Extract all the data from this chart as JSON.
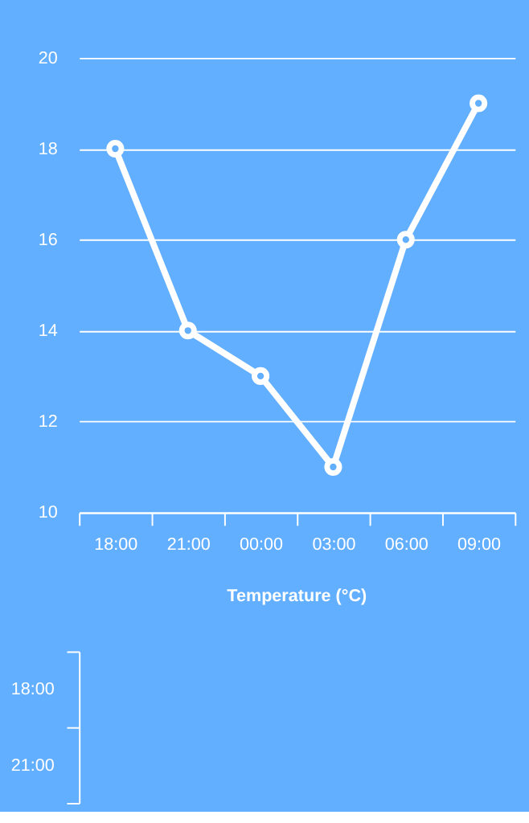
{
  "chart_data": [
    {
      "type": "line",
      "categories": [
        "18:00",
        "21:00",
        "00:00",
        "03:00",
        "06:00",
        "09:00"
      ],
      "series": [
        {
          "color": "#ffffff",
          "values": [
            18,
            14,
            13,
            11,
            16,
            19
          ]
        }
      ],
      "ylim": [
        10,
        20
      ],
      "yticks": [
        10,
        12,
        14,
        16,
        18,
        20
      ],
      "grid": "y",
      "marker": "circle",
      "line_style": "solid"
    },
    {
      "type": "other",
      "title": "Temperature (°C)",
      "categories": [
        "18:00",
        "21:00"
      ]
    }
  ]
}
